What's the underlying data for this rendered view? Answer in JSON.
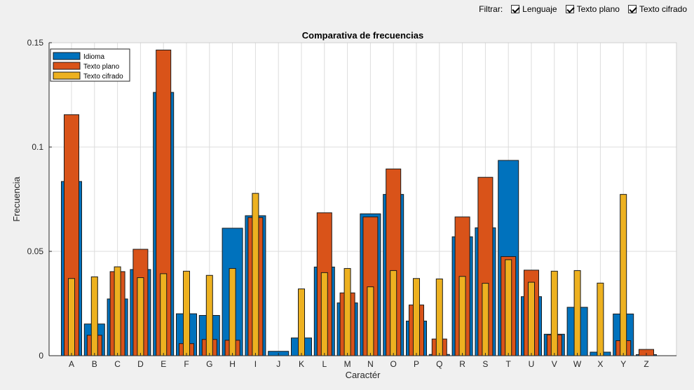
{
  "filter": {
    "label": "Filtrar:",
    "options": [
      {
        "label": "Lenguaje",
        "checked": true
      },
      {
        "label": "Texto plano",
        "checked": true
      },
      {
        "label": "Texto cifrado",
        "checked": true
      }
    ]
  },
  "chart_data": {
    "type": "bar",
    "title": "Comparativa de frecuencias",
    "xlabel": "Caractér",
    "ylabel": "Frecuencia",
    "ylim": [
      0,
      0.15
    ],
    "yticks": [
      0,
      0.05,
      0.1,
      0.15
    ],
    "ytick_labels": [
      "0",
      "0.05",
      "0.1",
      "0.15"
    ],
    "grid": true,
    "legend_position": "top-left",
    "categories": [
      "A",
      "B",
      "C",
      "D",
      "E",
      "F",
      "G",
      "H",
      "I",
      "J",
      "K",
      "L",
      "M",
      "N",
      "O",
      "P",
      "Q",
      "R",
      "S",
      "T",
      "U",
      "V",
      "W",
      "X",
      "Y",
      "Z"
    ],
    "series": [
      {
        "name": "Idioma",
        "color": "#0072bd",
        "values": [
          0.0835,
          0.0152,
          0.0272,
          0.0413,
          0.1262,
          0.0201,
          0.0193,
          0.0611,
          0.0671,
          0.0021,
          0.0085,
          0.0425,
          0.0253,
          0.068,
          0.0773,
          0.0166,
          0.0006,
          0.057,
          0.0613,
          0.0936,
          0.0283,
          0.0103,
          0.0232,
          0.0017,
          0.02,
          0.0005
        ]
      },
      {
        "name": "Texto plano",
        "color": "#d95319",
        "values": [
          0.1155,
          0.0098,
          0.0403,
          0.051,
          0.1465,
          0.0058,
          0.0078,
          0.0074,
          0.0662,
          0.0,
          0.0,
          0.0685,
          0.0301,
          0.0665,
          0.0895,
          0.0243,
          0.008,
          0.0665,
          0.0855,
          0.0475,
          0.041,
          0.01,
          0.0,
          0.0,
          0.0072,
          0.003
        ]
      },
      {
        "name": "Texto cifrado",
        "color": "#edb120",
        "values": [
          0.037,
          0.0378,
          0.0426,
          0.0374,
          0.0393,
          0.0405,
          0.0385,
          0.0418,
          0.0778,
          0.0,
          0.032,
          0.0398,
          0.0418,
          0.033,
          0.0408,
          0.037,
          0.0368,
          0.038,
          0.0347,
          0.046,
          0.0352,
          0.0405,
          0.0408,
          0.0348,
          0.0773,
          0.0
        ]
      }
    ]
  }
}
